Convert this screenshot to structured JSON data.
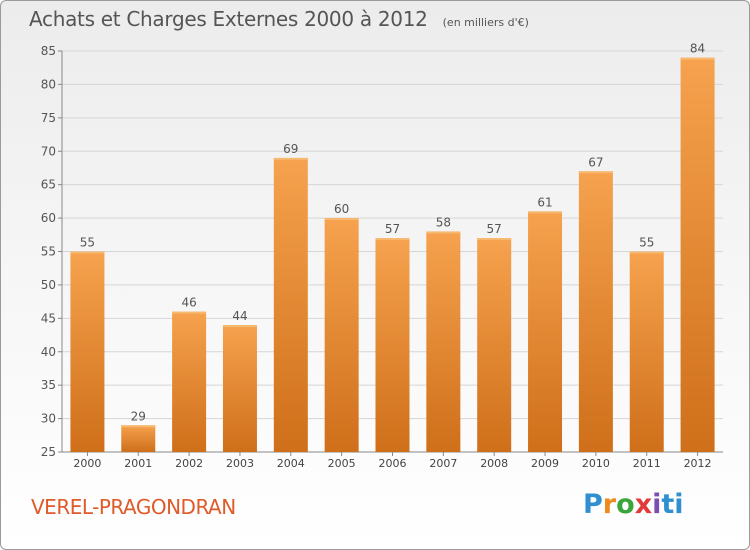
{
  "title": "Achats et Charges Externes 2000 à 2012",
  "unit": "(en milliers d'€)",
  "location": "VEREL-PRAGONDRAN",
  "logo_text": "Proxiti",
  "colors": {
    "bar_top": "#f6a24e",
    "bar_bottom": "#cf6f1a",
    "grid": "#d6d6d6",
    "text": "#555555",
    "location": "#e05a2a"
  },
  "chart_data": {
    "type": "bar",
    "categories": [
      "2000",
      "2001",
      "2002",
      "2003",
      "2004",
      "2005",
      "2006",
      "2007",
      "2008",
      "2009",
      "2010",
      "2011",
      "2012"
    ],
    "values": [
      55,
      29,
      46,
      44,
      69,
      60,
      57,
      58,
      57,
      61,
      67,
      55,
      84
    ],
    "ylim": [
      25,
      85
    ],
    "yticks": [
      25,
      30,
      35,
      40,
      45,
      50,
      55,
      60,
      65,
      70,
      75,
      80,
      85
    ],
    "grid": true,
    "data_labels": true
  }
}
